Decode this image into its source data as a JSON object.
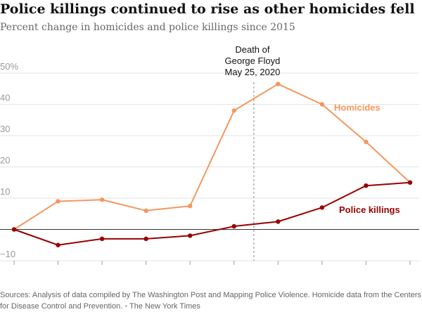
{
  "title": "Police killings continued to rise as other homicides fell",
  "subtitle": "Percent change in homicides and police killings since 2015",
  "chart_data": {
    "type": "line",
    "x": [
      0,
      1,
      2,
      3,
      4,
      5,
      6,
      7,
      8,
      9
    ],
    "ylim": [
      -10,
      50
    ],
    "yticks": [
      {
        "value": 50,
        "label": "50%"
      },
      {
        "value": 40,
        "label": "40"
      },
      {
        "value": 30,
        "label": "30"
      },
      {
        "value": 20,
        "label": "20"
      },
      {
        "value": 10,
        "label": "10"
      },
      {
        "value": 0,
        "label": ""
      },
      {
        "value": -10,
        "label": "−10"
      }
    ],
    "grid": true,
    "series": [
      {
        "name": "Homicides",
        "color": "#f4975f",
        "values": [
          0,
          9,
          9.5,
          6,
          7.5,
          38,
          46.5,
          40,
          28,
          15
        ]
      },
      {
        "name": "Police killings",
        "color": "#990000",
        "values": [
          0,
          -5,
          -3,
          -3,
          -2,
          1,
          2.5,
          7,
          14,
          15
        ]
      }
    ],
    "annotation": {
      "lines": [
        "Death of",
        "George Floyd",
        "May 25, 2020"
      ],
      "x": 5.45
    }
  },
  "source": {
    "text": "Sources: Analysis of data compiled by The Washington Post and Mapping Police Violence. Homicide data from the Centers for Disease Control and Prevention.",
    "separator": "•",
    "credit": "The New York Times"
  }
}
